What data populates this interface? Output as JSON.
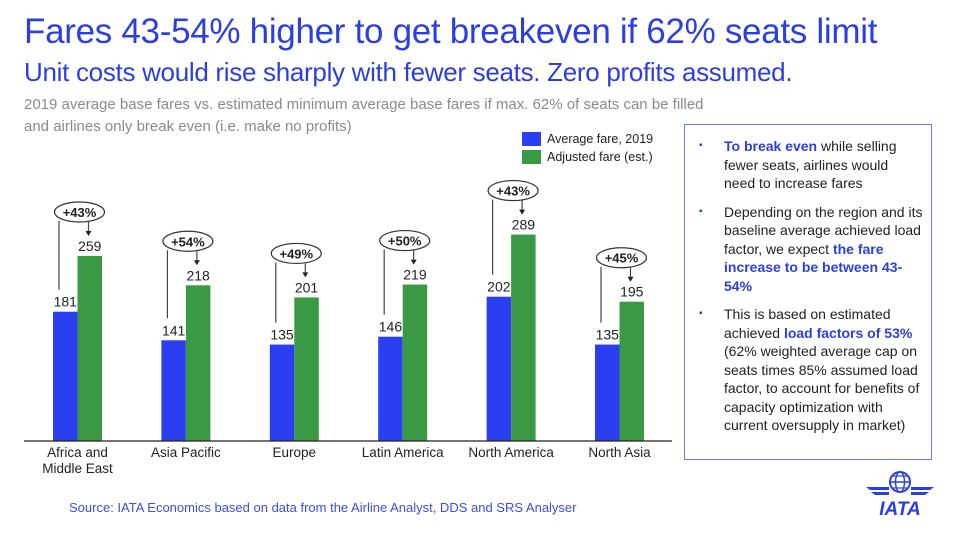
{
  "header": {
    "title": "Fares 43-54% higher to get breakeven if 62% seats limit",
    "subtitle": "Unit costs would rise sharply with fewer seats. Zero profits assumed.",
    "description": "2019 average base fares vs. estimated minimum average base fares if max. 62% of seats can be filled and airlines only break even (i.e. make no profits)"
  },
  "colors": {
    "accent": "#2b3fe0",
    "series_2019": "#2b3ff0",
    "series_adjusted": "#3a9a44"
  },
  "chart_data": {
    "type": "bar",
    "title": "2019 average base fares vs. estimated minimum average base fares",
    "xlabel": "",
    "ylabel": "",
    "grid": false,
    "legend_position": "top-right",
    "categories": [
      "Africa and Middle East",
      "Asia Pacific",
      "Europe",
      "Latin America",
      "North America",
      "North Asia"
    ],
    "category_lines": [
      [
        "Africa and",
        "Middle East"
      ],
      [
        "Asia Pacific"
      ],
      [
        "Europe"
      ],
      [
        "Latin America"
      ],
      [
        "North America"
      ],
      [
        "North Asia"
      ]
    ],
    "series": [
      {
        "name": "Average fare, 2019",
        "values": [
          181,
          141,
          135,
          146,
          202,
          135
        ]
      },
      {
        "name": "Adjusted fare (est.)",
        "values": [
          259,
          218,
          201,
          219,
          289,
          195
        ]
      }
    ],
    "annotations": [
      "+43%",
      "+54%",
      "+49%",
      "+50%",
      "+43%",
      "+45%"
    ],
    "ylim": [
      0,
      300
    ]
  },
  "notes": [
    {
      "segments": [
        {
          "text": "To break even",
          "hl": true
        },
        {
          "text": " while selling fewer seats, airlines would need to increase fares",
          "hl": false
        }
      ]
    },
    {
      "segments": [
        {
          "text": "Depending on the region and its baseline average achieved load factor, we expect ",
          "hl": false
        },
        {
          "text": "the fare increase to be between 43-54%",
          "hl": true
        }
      ]
    },
    {
      "segments": [
        {
          "text": "This is based on estimated achieved ",
          "hl": false
        },
        {
          "text": "load factors of 53%",
          "hl": true
        },
        {
          "text": " (62% weighted average cap on seats times 85% assumed load factor, to account for benefits of capacity optimization with current oversupply in market)",
          "hl": false
        }
      ]
    }
  ],
  "bullet_icon": "square-bullet-icon",
  "source": "Source: IATA Economics based on data from the Airline Analyst, DDS and SRS Analyser",
  "logo": {
    "text": "IATA",
    "icon": "globe-wings-icon"
  }
}
